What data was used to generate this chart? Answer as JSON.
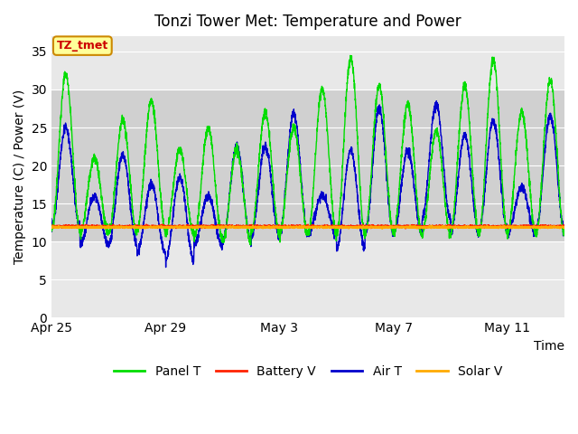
{
  "title": "Tonzi Tower Met: Temperature and Power",
  "xlabel": "Time",
  "ylabel": "Temperature (C) / Power (V)",
  "ylim": [
    0,
    37
  ],
  "yticks": [
    0,
    5,
    10,
    15,
    20,
    25,
    30,
    35
  ],
  "x_tick_labels": [
    "Apr 25",
    "Apr 29",
    "May 3",
    "May 7",
    "May 11"
  ],
  "x_tick_positions": [
    0,
    4,
    8,
    12,
    16
  ],
  "annotation_text": "TZ_tmet",
  "annotation_color": "#cc0000",
  "annotation_bg": "#ffff99",
  "annotation_border": "#cc8800",
  "legend_labels": [
    "Panel T",
    "Battery V",
    "Air T",
    "Solar V"
  ],
  "legend_colors": [
    "#00dd00",
    "#ff2200",
    "#0000cc",
    "#ffaa00"
  ],
  "panel_color": "#00dd00",
  "battery_color": "#ff2200",
  "air_color": "#0000cc",
  "solar_color": "#ffaa00",
  "bg_inner_color": "#d8d8d8",
  "bg_outer_color": "#e8e8e8",
  "grid_color": "#ffffff",
  "title_fontsize": 12,
  "axis_label_fontsize": 10,
  "tick_fontsize": 10,
  "panel_peaks": [
    32,
    21,
    26,
    28.5,
    22,
    24.8,
    22,
    27,
    25,
    30,
    34.2,
    30.5,
    28,
    24.5,
    30.5,
    34,
    27,
    31.2,
    30.8
  ],
  "panel_troughs": [
    11.5,
    11,
    11,
    11.5,
    11,
    10.5,
    10,
    11,
    11,
    11,
    11,
    11,
    11,
    11,
    11,
    11,
    11,
    11,
    11
  ],
  "air_peaks": [
    25,
    16,
    21.5,
    17.5,
    18.5,
    16,
    22.5,
    22.5,
    26.8,
    16.2,
    22,
    27.5,
    22,
    28,
    24,
    26,
    17.2,
    26.5,
    17.5
  ],
  "air_troughs": [
    12,
    9.7,
    9.5,
    8.5,
    7.5,
    9.5,
    10,
    10.5,
    11,
    11,
    9,
    11,
    11,
    13,
    11,
    11.5,
    11,
    11.5,
    11
  ],
  "battery_level": 12.0,
  "solar_level": 11.9,
  "n_days": 18
}
